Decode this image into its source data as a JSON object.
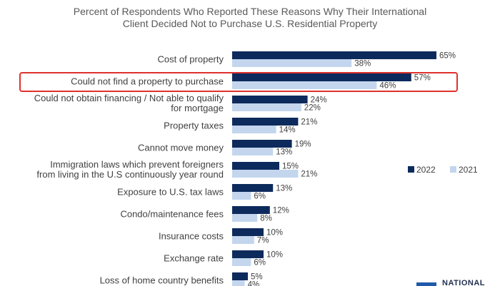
{
  "chart_data": {
    "type": "bar",
    "orientation": "horizontal",
    "title": "Percent of Respondents Who Reported These Reasons Why Their International Client Decided Not to Purchase U.S. Residential Property",
    "title_lines": [
      "Percent of Respondents Who Reported These Reasons Why Their International",
      "Client Decided Not to Purchase U.S. Residential Property"
    ],
    "categories": [
      [
        "Cost of property"
      ],
      [
        "Could not find a property to purchase"
      ],
      [
        "Could not obtain financing / Not able to qualify",
        "for mortgage"
      ],
      [
        "Property taxes"
      ],
      [
        "Cannot move money"
      ],
      [
        "Immigration laws which prevent foreigners",
        "from living in the U.S continuously year round"
      ],
      [
        "Exposure to U.S. tax laws"
      ],
      [
        "Condo/maintenance fees"
      ],
      [
        "Insurance costs"
      ],
      [
        "Exchange rate"
      ],
      [
        "Loss of home country benefits"
      ]
    ],
    "series": [
      {
        "name": "2022",
        "color": "#0d2a5c",
        "values": [
          65,
          57,
          24,
          21,
          19,
          15,
          13,
          12,
          10,
          10,
          5
        ]
      },
      {
        "name": "2021",
        "color": "#c3d6ee",
        "values": [
          38,
          46,
          22,
          14,
          13,
          21,
          6,
          8,
          7,
          6,
          4
        ]
      }
    ],
    "value_suffix": "%",
    "xlim": [
      0,
      100
    ],
    "grid": false,
    "legend": "right",
    "highlighted_category_index": 1
  },
  "highlight_color": "#e0312b",
  "brand": {
    "text": "NATIONAL",
    "color": "#1e5aa8"
  }
}
